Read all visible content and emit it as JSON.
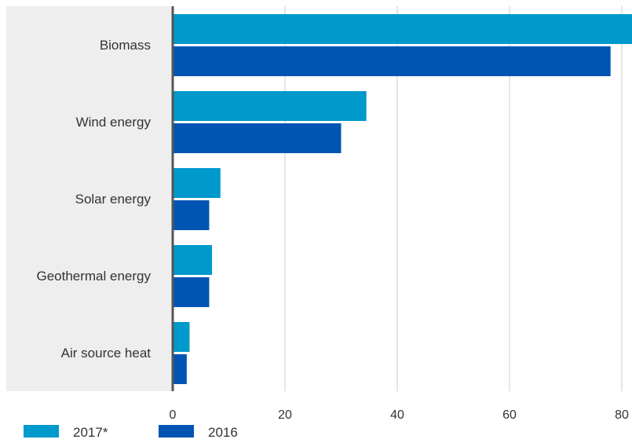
{
  "chart_data": {
    "type": "bar",
    "orientation": "horizontal",
    "title": "",
    "xlabel": "",
    "ylabel": "",
    "categories": [
      "Biomass",
      "Wind energy",
      "Solar energy",
      "Geothermal energy",
      "Air source heat"
    ],
    "series": [
      {
        "name": "2017*",
        "color": "#0099cc",
        "values": [
          82.5,
          34.5,
          8.5,
          7.0,
          3.0
        ]
      },
      {
        "name": "2016",
        "color": "#0055b3",
        "values": [
          78.0,
          30.0,
          6.5,
          6.5,
          2.5
        ]
      }
    ],
    "xlim": [
      0,
      82
    ],
    "xticks": [
      0,
      20,
      40,
      60,
      80
    ],
    "grid": true,
    "legend_position": "bottom-left",
    "colors": {
      "label_panel": "#eeeeee",
      "axis": "#555555",
      "grid": "#cccccc"
    }
  }
}
